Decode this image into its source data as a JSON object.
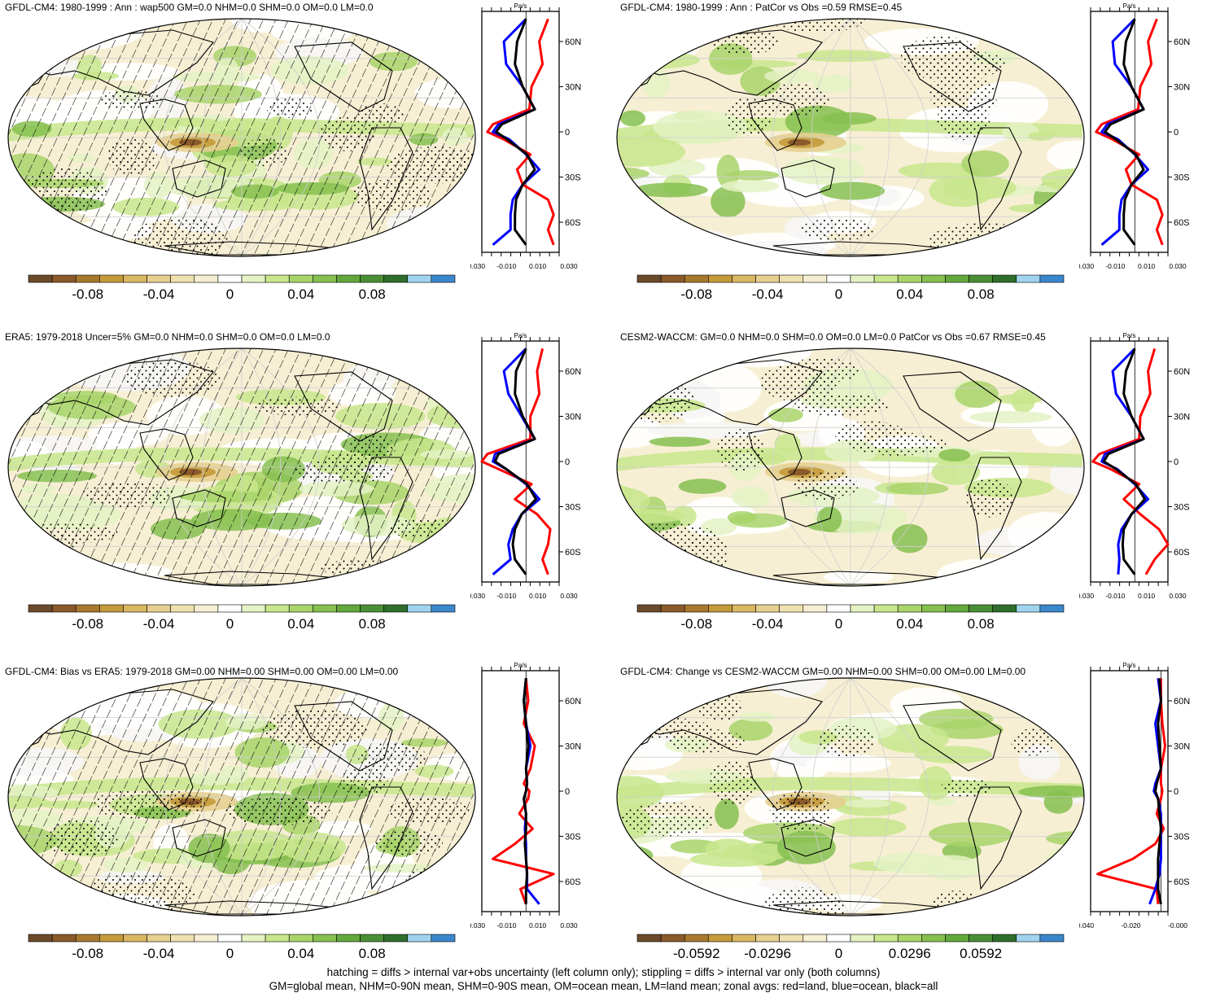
{
  "footer": {
    "line1": "hatching = diffs > internal var+obs uncertainty (left column only); stippling = diffs > internal var only (both columns)",
    "line2": "GM=global mean, NHM=0-90N mean, SHM=0-90S mean, OM=ocean mean, LM=land mean; zonal avgs: red=land, blue=ocean, black=all"
  },
  "colors": {
    "palette": [
      "#6b4a2b",
      "#8a5a2b",
      "#a8782e",
      "#c49a3a",
      "#d9b763",
      "#e6cf8f",
      "#efe0b0",
      "#f6eed2",
      "#ffffff",
      "#e4f2c4",
      "#c8e68c",
      "#a8d46a",
      "#86c050",
      "#63a83c",
      "#4a8f35",
      "#2f6e2c",
      "#9fd3ee",
      "#3b87cc"
    ],
    "land": "#ff0000",
    "ocean": "#0000ff",
    "all": "#000000"
  },
  "zonal_common": {
    "unit": "Pa/s",
    "lat_labels": [
      "60N",
      "30N",
      "0",
      "30S",
      "60S"
    ]
  },
  "panels": [
    {
      "title": "GFDL-CM4: 1980-1999 : Ann : wap500 GM=0.0 NHM=0.0 SHM=0.0 OM=0.0 LM=0.0",
      "cbar_labels": [
        "-0.08",
        "-0.04",
        "0",
        "0.04",
        "0.08"
      ],
      "zonal_xticks": [
        "-0.030",
        "-0.010",
        "0.010",
        "0.030"
      ]
    },
    {
      "title": "GFDL-CM4: 1980-1999 : Ann : PatCor vs Obs =0.59 RMSE=0.45",
      "cbar_labels": [
        "-0.08",
        "-0.04",
        "0",
        "0.04",
        "0.08"
      ],
      "zonal_xticks": [
        "-0.030",
        "-0.010",
        "0.010",
        "0.030"
      ]
    },
    {
      "title": "ERA5: 1979-2018 Uncer=5% GM=0.0 NHM=0.0 SHM=0.0 OM=0.0 LM=0.0",
      "cbar_labels": [
        "-0.08",
        "-0.04",
        "0",
        "0.04",
        "0.08"
      ],
      "zonal_xticks": [
        "-0.030",
        "-0.010",
        "0.010",
        "0.030"
      ]
    },
    {
      "title": "CESM2-WACCM: GM=0.0 NHM=0.0 SHM=0.0 OM=0.0 LM=0.0 PatCor vs Obs =0.67 RMSE=0.45",
      "cbar_labels": [
        "-0.08",
        "-0.04",
        "0",
        "0.04",
        "0.08"
      ],
      "zonal_xticks": [
        "-0.030",
        "-0.010",
        "0.010",
        "0.030"
      ]
    },
    {
      "title": "GFDL-CM4: Bias vs ERA5: 1979-2018 GM=0.00 NHM=0.00 SHM=0.00 OM=0.00 LM=0.00",
      "cbar_labels": [
        "-0.08",
        "-0.04",
        "0",
        "0.04",
        "0.08"
      ],
      "zonal_xticks": [
        "-0.030",
        "-0.010",
        "0.010",
        "0.030"
      ]
    },
    {
      "title": "GFDL-CM4: Change vs CESM2-WACCM GM=0.00 NHM=0.00 SHM=0.00 OM=0.00 LM=0.00",
      "cbar_labels": [
        "-0.0592",
        "-0.0296",
        "0",
        "0.0296",
        "0.0592"
      ],
      "zonal_xticks": [
        "-0.040",
        "-0.020",
        "-0.000"
      ]
    }
  ],
  "chart_data": [
    {
      "type": "line",
      "title": "GFDL-CM4: 1980-1999 : Ann : wap500 GM=0.0 NHM=0.0 SHM=0.0 OM=0.0 LM=0.0",
      "ylabel": "",
      "xlabel": "Pa/s",
      "xlim": [
        -0.04,
        0.03
      ],
      "ylim": [
        -80,
        80
      ],
      "y": [
        75,
        60,
        45,
        30,
        15,
        5,
        0,
        -5,
        -15,
        -25,
        -35,
        -45,
        -55,
        -65,
        -75
      ],
      "series": [
        {
          "name": "red",
          "values": [
            0.02,
            0.012,
            0.015,
            0.005,
            0.003,
            -0.03,
            -0.035,
            -0.02,
            0.004,
            -0.008,
            -0.003,
            0.02,
            0.025,
            0.02,
            0.025
          ]
        },
        {
          "name": "blue",
          "values": [
            0.0,
            -0.02,
            -0.018,
            -0.003,
            0.008,
            -0.025,
            -0.03,
            -0.015,
            0.0,
            0.012,
            -0.003,
            -0.012,
            -0.014,
            -0.014,
            -0.03
          ]
        },
        {
          "name": "black",
          "values": [
            0.0,
            -0.008,
            -0.01,
            -0.003,
            0.008,
            -0.022,
            -0.027,
            -0.017,
            0.001,
            0.008,
            -0.003,
            -0.009,
            -0.01,
            -0.01,
            0.0
          ]
        }
      ]
    },
    {
      "type": "line",
      "title": "GFDL-CM4: 1980-1999 : Ann : PatCor vs Obs =0.59 RMSE=0.45",
      "ylabel": "",
      "xlabel": "Pa/s",
      "xlim": [
        -0.04,
        0.03
      ],
      "ylim": [
        -80,
        80
      ],
      "y": [
        75,
        60,
        45,
        30,
        15,
        5,
        0,
        -5,
        -15,
        -25,
        -35,
        -45,
        -55,
        -65,
        -75
      ],
      "series": [
        {
          "name": "red",
          "values": [
            0.02,
            0.012,
            0.015,
            0.005,
            0.003,
            -0.03,
            -0.035,
            -0.02,
            0.004,
            -0.008,
            -0.003,
            0.02,
            0.025,
            0.02,
            0.025
          ]
        },
        {
          "name": "blue",
          "values": [
            0.0,
            -0.02,
            -0.018,
            -0.003,
            0.008,
            -0.025,
            -0.03,
            -0.015,
            0.0,
            0.012,
            -0.003,
            -0.012,
            -0.014,
            -0.014,
            -0.03
          ]
        },
        {
          "name": "black",
          "values": [
            0.0,
            -0.008,
            -0.01,
            -0.003,
            0.008,
            -0.022,
            -0.027,
            -0.017,
            0.001,
            0.008,
            -0.003,
            -0.009,
            -0.01,
            -0.01,
            0.0
          ]
        }
      ]
    },
    {
      "type": "line",
      "title": "ERA5: 1979-2018 Uncer=5% GM=0.0 NHM=0.0 SHM=0.0 OM=0.0 LM=0.0",
      "ylabel": "",
      "xlabel": "Pa/s",
      "xlim": [
        -0.04,
        0.03
      ],
      "ylim": [
        -80,
        80
      ],
      "y": [
        75,
        60,
        45,
        30,
        15,
        5,
        0,
        -5,
        -15,
        -25,
        -35,
        -45,
        -55,
        -65,
        -75
      ],
      "series": [
        {
          "name": "red",
          "values": [
            0.015,
            0.01,
            0.012,
            0.004,
            0.004,
            -0.035,
            -0.04,
            -0.025,
            0.005,
            -0.01,
            0.01,
            0.022,
            0.02,
            0.015,
            0.02
          ]
        },
        {
          "name": "blue",
          "values": [
            0.0,
            -0.02,
            -0.016,
            -0.004,
            0.008,
            -0.028,
            -0.03,
            -0.018,
            0.0,
            0.012,
            -0.004,
            -0.012,
            -0.016,
            -0.014,
            -0.03
          ]
        },
        {
          "name": "black",
          "values": [
            0.0,
            -0.009,
            -0.01,
            -0.003,
            0.008,
            -0.025,
            -0.028,
            -0.018,
            0.001,
            0.009,
            -0.004,
            -0.01,
            -0.012,
            -0.01,
            0.0
          ]
        }
      ]
    },
    {
      "type": "line",
      "title": "CESM2-WACCM: GM=0.0 NHM=0.0 SHM=0.0 OM=0.0 LM=0.0 PatCor vs Obs =0.67 RMSE=0.45",
      "ylabel": "",
      "xlabel": "Pa/s",
      "xlim": [
        -0.04,
        0.03
      ],
      "ylim": [
        -80,
        80
      ],
      "y": [
        75,
        60,
        45,
        30,
        15,
        5,
        0,
        -5,
        -15,
        -25,
        -35,
        -45,
        -55,
        -65,
        -75
      ],
      "series": [
        {
          "name": "red",
          "values": [
            0.018,
            0.012,
            0.014,
            0.005,
            0.004,
            -0.032,
            -0.038,
            -0.022,
            0.004,
            -0.01,
            0.005,
            0.022,
            0.03,
            0.018,
            0.01
          ]
        },
        {
          "name": "blue",
          "values": [
            0.0,
            -0.02,
            -0.017,
            -0.003,
            0.008,
            -0.027,
            -0.03,
            -0.016,
            0.0,
            0.012,
            -0.003,
            -0.012,
            -0.015,
            -0.014,
            -0.015
          ]
        },
        {
          "name": "black",
          "values": [
            0.0,
            -0.008,
            -0.01,
            -0.003,
            0.008,
            -0.024,
            -0.028,
            -0.017,
            0.001,
            0.009,
            -0.003,
            -0.01,
            -0.011,
            -0.01,
            0.0
          ]
        }
      ]
    },
    {
      "type": "line",
      "title": "GFDL-CM4: Bias vs ERA5: 1979-2018 GM=0.00 NHM=0.00 SHM=0.00 OM=0.00 LM=0.00",
      "ylabel": "",
      "xlabel": "Pa/s",
      "xlim": [
        -0.04,
        0.03
      ],
      "ylim": [
        -80,
        80
      ],
      "y": [
        75,
        60,
        45,
        30,
        15,
        5,
        0,
        -5,
        -15,
        -25,
        -35,
        -45,
        -55,
        -65,
        -75
      ],
      "series": [
        {
          "name": "red",
          "values": [
            0.0,
            0.002,
            -0.002,
            0.008,
            0.004,
            -0.002,
            0.003,
            0.002,
            -0.006,
            0.006,
            -0.01,
            -0.03,
            0.025,
            -0.005,
            0.0
          ]
        },
        {
          "name": "blue",
          "values": [
            0.0,
            -0.002,
            0.0,
            0.004,
            0.0,
            0.001,
            0.0,
            -0.002,
            0.0,
            -0.001,
            0.0,
            0.0,
            0.001,
            0.001,
            0.012
          ]
        },
        {
          "name": "black",
          "values": [
            0.0,
            -0.002,
            0.0,
            0.002,
            0.0,
            0.001,
            0.0,
            -0.002,
            0.0,
            0.0,
            -0.001,
            0.0,
            0.001,
            0.0,
            0.0
          ]
        }
      ]
    },
    {
      "type": "line",
      "title": "GFDL-CM4: Change vs CESM2-WACCM GM=0.00 NHM=0.00 SHM=0.00 OM=0.00 LM=0.00",
      "ylabel": "",
      "xlabel": "Pa/s",
      "xlim": [
        -0.05,
        0.005
      ],
      "ylim": [
        -80,
        80
      ],
      "y": [
        75,
        60,
        45,
        30,
        15,
        5,
        0,
        -5,
        -15,
        -25,
        -35,
        -45,
        -55,
        -65,
        -75
      ],
      "series": [
        {
          "name": "red",
          "values": [
            0.0,
            0.0,
            0.001,
            0.003,
            0.0,
            0.0,
            0.001,
            0.0,
            -0.003,
            0.002,
            -0.004,
            -0.02,
            -0.045,
            -0.003,
            -0.002
          ]
        },
        {
          "name": "blue",
          "values": [
            -0.002,
            0.0,
            -0.004,
            -0.002,
            0.0,
            -0.004,
            -0.005,
            -0.002,
            0.0,
            0.0,
            0.0,
            0.0,
            -0.001,
            -0.004,
            -0.008
          ]
        },
        {
          "name": "black",
          "values": [
            -0.001,
            0.0,
            -0.002,
            -0.001,
            0.0,
            -0.003,
            -0.004,
            -0.002,
            -0.001,
            0.0,
            -0.001,
            -0.002,
            -0.002,
            -0.002,
            0.0
          ]
        }
      ]
    }
  ]
}
